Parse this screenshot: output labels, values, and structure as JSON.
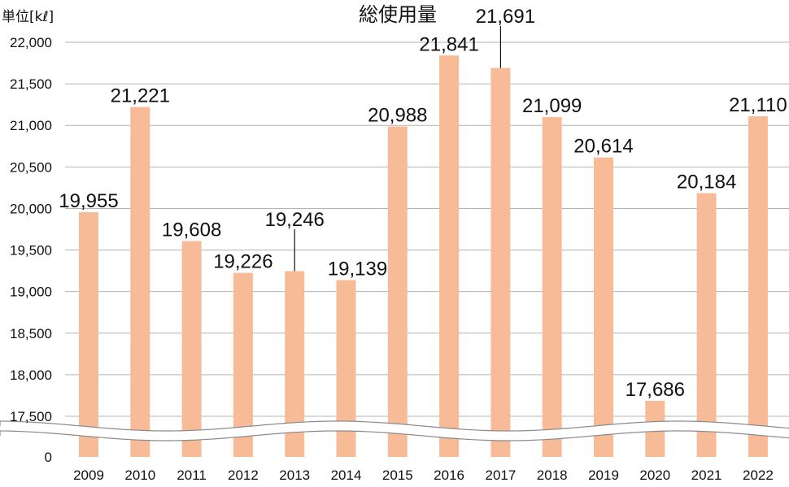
{
  "chart_data": {
    "type": "bar",
    "title": "総使用量",
    "unit_label": "単位[kℓ]",
    "categories": [
      "2009",
      "2010",
      "2011",
      "2012",
      "2013",
      "2014",
      "2015",
      "2016",
      "2017",
      "2018",
      "2019",
      "2020",
      "2021",
      "2022"
    ],
    "values": [
      19955,
      21221,
      19608,
      19226,
      19246,
      19139,
      20988,
      21841,
      21691,
      21099,
      20614,
      17686,
      20184,
      21110
    ],
    "value_labels": [
      "19,955",
      "21,221",
      "19,608",
      "19,226",
      "19,246",
      "19,139",
      "20,988",
      "21,841",
      "21,691",
      "21,099",
      "20,614",
      "17,686",
      "20,184",
      "21,110"
    ],
    "y_ticks": [
      "22,000",
      "21,500",
      "21,000",
      "20,500",
      "20,000",
      "19,500",
      "19,000",
      "18,500",
      "18,000",
      "17,500",
      "0"
    ],
    "ylim": [
      17500,
      22000
    ],
    "axis_break": true,
    "grid": true,
    "bar_color": "#f7bb98",
    "grid_color": "#b4b4b4"
  }
}
